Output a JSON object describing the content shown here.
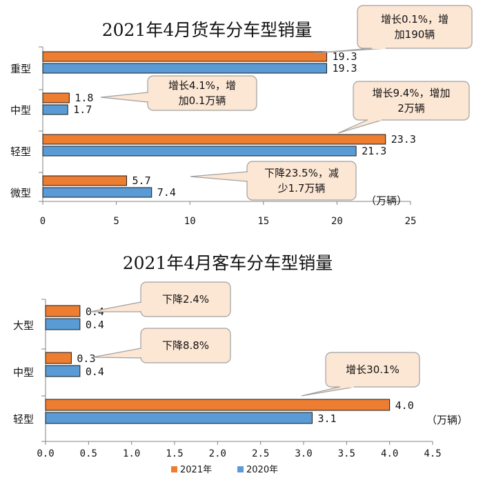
{
  "chart_data": [
    {
      "type": "bar",
      "orientation": "horizontal",
      "title": "2021年4月货车分车型销量",
      "categories": [
        "重型",
        "中型",
        "轻型",
        "微型"
      ],
      "series": [
        {
          "name": "2021年",
          "color": "#ED7D31",
          "values": [
            19.3,
            1.8,
            23.3,
            5.7
          ],
          "labels": [
            "19.3",
            "1.8",
            "23.3",
            "5.7"
          ]
        },
        {
          "name": "2020年",
          "color": "#5B9BD5",
          "values": [
            19.3,
            1.7,
            21.3,
            7.4
          ],
          "labels": [
            "19.3",
            "1.7",
            "21.3",
            "7.4"
          ]
        }
      ],
      "xlim": [
        0,
        25
      ],
      "ticks": [
        0,
        5,
        10,
        15,
        20,
        25
      ],
      "tick_labels": [
        "0",
        "5",
        "10",
        "15",
        "20",
        "25"
      ],
      "unit": "（万辆）",
      "annotations": [
        {
          "lines": [
            "增长0.1%，增",
            "加190辆"
          ],
          "category": "重型"
        },
        {
          "lines": [
            "增长4.1%，增",
            "加0.1万辆"
          ],
          "category": "中型"
        },
        {
          "lines": [
            "增长9.4%，增加",
            "2万辆"
          ],
          "category": "轻型"
        },
        {
          "lines": [
            "下降23.5%，减",
            "少1.7万辆"
          ],
          "category": "微型"
        }
      ]
    },
    {
      "type": "bar",
      "orientation": "horizontal",
      "title": "2021年4月客车分车型销量",
      "categories": [
        "大型",
        "中型",
        "轻型"
      ],
      "series": [
        {
          "name": "2021年",
          "color": "#ED7D31",
          "values": [
            0.4,
            0.3,
            4.0
          ],
          "labels": [
            "0.4",
            "0.3",
            "4.0"
          ]
        },
        {
          "name": "2020年",
          "color": "#5B9BD5",
          "values": [
            0.4,
            0.4,
            3.1
          ],
          "labels": [
            "0.4",
            "0.4",
            "3.1"
          ]
        }
      ],
      "xlim": [
        0,
        4.5
      ],
      "ticks": [
        0,
        0.5,
        1.0,
        1.5,
        2.0,
        2.5,
        3.0,
        3.5,
        4.0,
        4.5
      ],
      "tick_labels": [
        "0.0",
        "0.5",
        "1.0",
        "1.5",
        "2.0",
        "2.5",
        "3.0",
        "3.5",
        "4.0",
        "4.5"
      ],
      "unit": "（万辆）",
      "annotations": [
        {
          "lines": [
            "下降2.4%"
          ],
          "category": "大型"
        },
        {
          "lines": [
            "下降8.8%"
          ],
          "category": "中型"
        },
        {
          "lines": [
            "增长30.1%"
          ],
          "category": "轻型"
        }
      ]
    }
  ],
  "legend": [
    {
      "label": "2021年",
      "color": "#ED7D31"
    },
    {
      "label": "2020年",
      "color": "#5B9BD5"
    }
  ],
  "colors": {
    "callout_fill": "#FCE6D4",
    "callout_stroke": "#A0A0A0",
    "axis": "#808080"
  }
}
